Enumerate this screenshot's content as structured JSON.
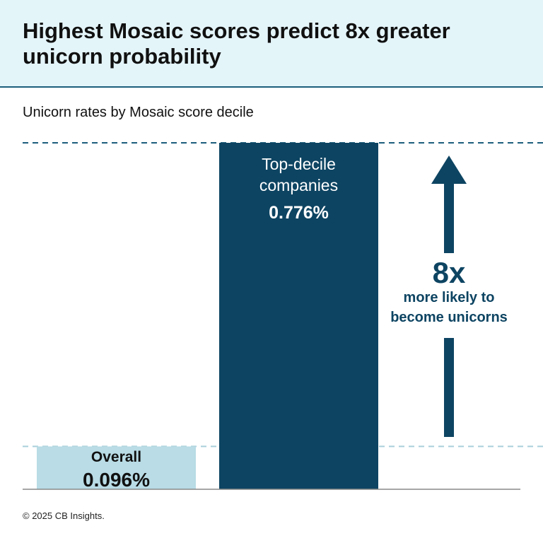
{
  "chart_data": {
    "type": "bar",
    "title": "Highest Mosaic scores predict 8x greater unicorn probability",
    "subtitle": "Unicorn rates by Mosaic score decile",
    "categories": [
      "Overall",
      "Top-decile companies"
    ],
    "values": [
      0.096,
      0.776
    ],
    "value_labels": [
      "0.096%",
      "0.776%"
    ],
    "colors": [
      "#b9dce6",
      "#0d4462"
    ],
    "annotation": {
      "multiplier": "8x",
      "lines": [
        "more likely to",
        "become unicorns"
      ]
    },
    "footer": "© 2025 CB Insights."
  }
}
